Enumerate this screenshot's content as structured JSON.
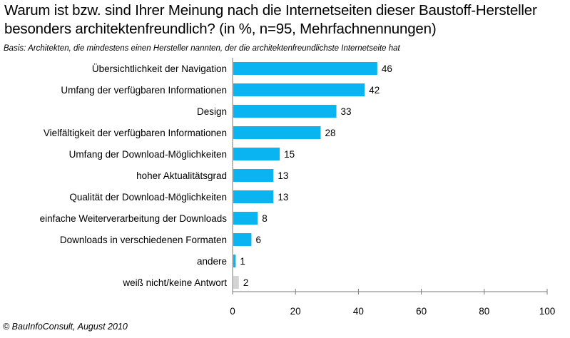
{
  "title": "Warum ist bzw. sind Ihrer Meinung nach die Internetseiten dieser Baustoff-Hersteller besonders architektenfreundlich? (in %, n=95, Mehrfachnennungen)",
  "basis": "Basis: Architekten, die mindestens einen Hersteller nannten, der die architektenfreundlichste Internetseite hat",
  "footer": "© BauInfoConsult,  August 2010",
  "colors": {
    "bar": "#0ab4f0",
    "bar_muted": "#d4d4d4",
    "axis": "#7a7a7a"
  },
  "chart_data": {
    "type": "bar",
    "orientation": "horizontal",
    "title": "Warum ist bzw. sind Ihrer Meinung nach die Internetseiten dieser Baustoff-Hersteller besonders architektenfreundlich? (in %, n=95, Mehrfachnennungen)",
    "categories": [
      "Übersichtlichkeit der Navigation",
      "Umfang der verfügbaren Informationen",
      "Design",
      "Vielfältigkeit der verfügbaren Informationen",
      "Umfang der Download-Möglichkeiten",
      "hoher Aktualitätsgrad",
      "Qualität der Download-Möglichkeiten",
      "einfache Weiterverarbeitung der Downloads",
      "Downloads in verschiedenen Formaten",
      "andere",
      "weiß nicht/keine Antwort"
    ],
    "values": [
      46,
      42,
      33,
      28,
      15,
      13,
      13,
      8,
      6,
      1,
      2
    ],
    "muted": [
      false,
      false,
      false,
      false,
      false,
      false,
      false,
      false,
      false,
      false,
      true
    ],
    "xlim": [
      0,
      100
    ],
    "xticks": [
      0,
      20,
      40,
      60,
      80,
      100
    ],
    "xlabel": "",
    "ylabel": "",
    "grid": false,
    "data_labels": true
  }
}
